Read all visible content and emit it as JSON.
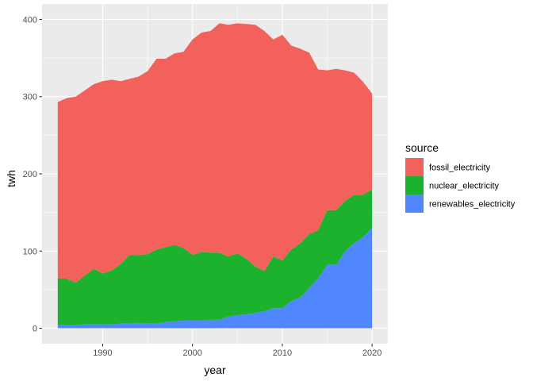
{
  "chart_data": {
    "type": "area",
    "stacked": true,
    "xlabel": "year",
    "ylabel": "twh",
    "xlim": [
      1985,
      2020
    ],
    "ylim": [
      0,
      400
    ],
    "xticks": [
      1990,
      2000,
      2010,
      2020
    ],
    "yticks": [
      0,
      100,
      200,
      300,
      400
    ],
    "grid": true,
    "legend": {
      "title": "source",
      "position": "right"
    },
    "x": [
      1985,
      1986,
      1987,
      1988,
      1989,
      1990,
      1991,
      1992,
      1993,
      1994,
      1995,
      1996,
      1997,
      1998,
      1999,
      2000,
      2001,
      2002,
      2003,
      2004,
      2005,
      2006,
      2007,
      2008,
      2009,
      2010,
      2011,
      2012,
      2013,
      2014,
      2015,
      2016,
      2017,
      2018,
      2019,
      2020
    ],
    "series": [
      {
        "name": "renewables_electricity",
        "color": "#5087FF",
        "values": [
          4,
          4,
          4,
          5,
          5,
          5,
          5,
          6,
          6,
          7,
          6,
          6,
          8,
          9,
          10,
          10,
          10,
          11,
          11,
          15,
          17,
          18,
          20,
          22,
          26,
          26,
          35,
          40,
          52,
          65,
          82,
          82,
          100,
          110,
          118,
          130
        ]
      },
      {
        "name": "nuclear_electricity",
        "color": "#1CB22E",
        "values": [
          61,
          60,
          55,
          63,
          72,
          66,
          70,
          77,
          89,
          88,
          90,
          96,
          97,
          99,
          94,
          85,
          89,
          87,
          87,
          78,
          80,
          72,
          60,
          52,
          67,
          62,
          67,
          70,
          70,
          62,
          71,
          71,
          65,
          63,
          55,
          50
        ]
      },
      {
        "name": "fossil_electricity",
        "color": "#F3615D",
        "values": [
          228,
          234,
          241,
          240,
          239,
          249,
          247,
          237,
          228,
          231,
          237,
          247,
          244,
          248,
          254,
          279,
          284,
          287,
          297,
          300,
          298,
          304,
          313,
          311,
          281,
          292,
          264,
          252,
          235,
          208,
          181,
          183,
          169,
          158,
          146,
          124
        ]
      }
    ]
  }
}
